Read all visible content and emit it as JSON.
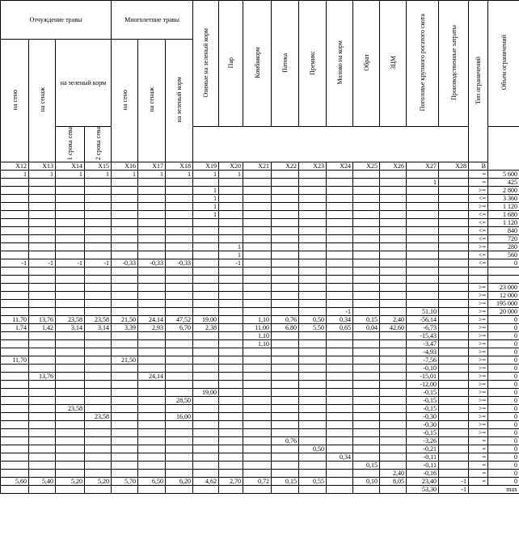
{
  "headers": {
    "g1": "Отчуждение травы",
    "g2": "Многолетние травы",
    "green_fodder_sub": "на зеленый корм",
    "cols": [
      {
        "code": "X12",
        "label": "на сено"
      },
      {
        "code": "X13",
        "label": "на сенаж"
      },
      {
        "code": "X14",
        "label": "1 срока сева"
      },
      {
        "code": "X15",
        "label": "2 срока сева"
      },
      {
        "code": "X16",
        "label": "на сено"
      },
      {
        "code": "X17",
        "label": "на сенаж"
      },
      {
        "code": "X18",
        "label": "на зеленый корм"
      },
      {
        "code": "X19",
        "label": "Озимые на зеленый корм"
      },
      {
        "code": "X20",
        "label": "Пар"
      },
      {
        "code": "X21",
        "label": "Комбикорм"
      },
      {
        "code": "X22",
        "label": "Патока"
      },
      {
        "code": "X23",
        "label": "Премикс"
      },
      {
        "code": "X24",
        "label": "Молоко на корм"
      },
      {
        "code": "X25",
        "label": "Обрат"
      },
      {
        "code": "X26",
        "label": "ЗЦМ"
      },
      {
        "code": "X27",
        "label": "Поголовье крупного рогатого скота"
      },
      {
        "code": "X28",
        "label": "Производственные затраты"
      }
    ],
    "type_label": "Тип ограничений",
    "volume_label": "Объем ограничений",
    "volume_code": "В"
  },
  "rows": [
    {
      "c": [
        "1",
        "1",
        "1",
        "1",
        "1",
        "1",
        "1",
        "1",
        "1",
        "",
        "",
        "",
        "",
        "",
        "",
        "",
        ""
      ],
      "op": "=",
      "v": "5 600"
    },
    {
      "c": [
        "",
        "",
        "",
        "",
        "",
        "",
        "",
        "",
        "",
        "",
        "",
        "",
        "",
        "",
        "",
        "1",
        ""
      ],
      "op": "=",
      "v": "425"
    },
    {
      "c": [
        "",
        "",
        "",
        "",
        "",
        "",
        "",
        "1",
        "",
        "",
        "",
        "",
        "",
        "",
        "",
        "",
        ""
      ],
      "op": ">=",
      "v": "2 800"
    },
    {
      "c": [
        "",
        "",
        "",
        "",
        "",
        "",
        "",
        "1",
        "",
        "",
        "",
        "",
        "",
        "",
        "",
        "",
        ""
      ],
      "op": "<=",
      "v": "3 360"
    },
    {
      "c": [
        "",
        "",
        "",
        "",
        "",
        "",
        "",
        "1",
        "",
        "",
        "",
        "",
        "",
        "",
        "",
        "",
        ""
      ],
      "op": ">=",
      "v": "1 120"
    },
    {
      "c": [
        "",
        "",
        "",
        "",
        "",
        "",
        "",
        "1",
        "",
        "",
        "",
        "",
        "",
        "",
        "",
        "",
        ""
      ],
      "op": "<=",
      "v": "1 680"
    },
    {
      "c": [
        "",
        "",
        "",
        "",
        "",
        "",
        "",
        "",
        "",
        "",
        "",
        "",
        "",
        "",
        "",
        "",
        ""
      ],
      "op": "<=",
      "v": "1 120"
    },
    {
      "c": [
        "",
        "",
        "",
        "",
        "",
        "",
        "",
        "",
        "",
        "",
        "",
        "",
        "",
        "",
        "",
        "",
        ""
      ],
      "op": "<=",
      "v": "840"
    },
    {
      "c": [
        "",
        "",
        "",
        "",
        "",
        "",
        "",
        "",
        "",
        "",
        "",
        "",
        "",
        "",
        "",
        "",
        ""
      ],
      "op": "<=",
      "v": "720"
    },
    {
      "c": [
        "",
        "",
        "",
        "",
        "",
        "",
        "",
        "",
        "1",
        "",
        "",
        "",
        "",
        "",
        "",
        "",
        ""
      ],
      "op": ">=",
      "v": "280"
    },
    {
      "c": [
        "",
        "",
        "",
        "",
        "",
        "",
        "",
        "",
        "1",
        "",
        "",
        "",
        "",
        "",
        "",
        "",
        ""
      ],
      "op": "<=",
      "v": "560"
    },
    {
      "c": [
        "-1",
        "-1",
        "-1",
        "-1",
        "-0,33",
        "-0,33",
        "-0,33",
        "",
        "-1",
        "",
        "",
        "",
        "",
        "",
        "",
        "",
        ""
      ],
      "op": "<=",
      "v": "0"
    },
    {
      "c": [
        "",
        "",
        "",
        "",
        "",
        "",
        "",
        "",
        "",
        "",
        "",
        "",
        "",
        "",
        "",
        "",
        ""
      ],
      "op": "",
      "v": ""
    },
    {
      "c": [
        "",
        "",
        "",
        "",
        "",
        "",
        "",
        "",
        "",
        "",
        "",
        "",
        "",
        "",
        "",
        "",
        ""
      ],
      "op": "",
      "v": ""
    },
    {
      "c": [
        "",
        "",
        "",
        "",
        "",
        "",
        "",
        "",
        "",
        "",
        "",
        "",
        "",
        "",
        "",
        "",
        ""
      ],
      "op": ">=",
      "v": "23 000"
    },
    {
      "c": [
        "",
        "",
        "",
        "",
        "",
        "",
        "",
        "",
        "",
        "",
        "",
        "",
        "",
        "",
        "",
        "",
        ""
      ],
      "op": ">=",
      "v": "12 000"
    },
    {
      "c": [
        "",
        "",
        "",
        "",
        "",
        "",
        "",
        "",
        "",
        "",
        "",
        "",
        "",
        "",
        "",
        "",
        ""
      ],
      "op": ">=",
      "v": "195 000"
    },
    {
      "c": [
        "",
        "",
        "",
        "",
        "",
        "",
        "",
        "",
        "",
        "",
        "",
        "",
        "-1",
        "",
        "",
        "51,10",
        ""
      ],
      "op": ">=",
      "v": "20 000"
    },
    {
      "c": [
        "11,70",
        "13,76",
        "23,58",
        "23,58",
        "21,50",
        "24,14",
        "47,52",
        "19,00",
        "",
        "1,10",
        "0,76",
        "0,50",
        "0,34",
        "0,15",
        "2,40",
        "-56,14",
        ""
      ],
      "op": ">=",
      "v": "0"
    },
    {
      "c": [
        "1,74",
        "1,42",
        "3,14",
        "3,14",
        "3,39",
        "2,93",
        "6,70",
        "2,38",
        "",
        "11,00",
        "6,80",
        "5,50",
        "0,65",
        "0,04",
        "42,60",
        "-6,73",
        ""
      ],
      "op": ">=",
      "v": "0"
    },
    {
      "c": [
        "",
        "",
        "",
        "",
        "",
        "",
        "",
        "",
        "",
        "1,10",
        "",
        "",
        "",
        "",
        "",
        "-15,43",
        ""
      ],
      "op": ">=",
      "v": "0"
    },
    {
      "c": [
        "",
        "",
        "",
        "",
        "",
        "",
        "",
        "",
        "",
        "1,10",
        "",
        "",
        "",
        "",
        "",
        "-3,47",
        ""
      ],
      "op": ">=",
      "v": "0"
    },
    {
      "c": [
        "",
        "",
        "",
        "",
        "",
        "",
        "",
        "",
        "",
        "",
        "",
        "",
        "",
        "",
        "",
        "-4,93",
        ""
      ],
      "op": ">=",
      "v": "0"
    },
    {
      "c": [
        "11,70",
        "",
        "",
        "",
        "21,50",
        "",
        "",
        "",
        "",
        "",
        "",
        "",
        "",
        "",
        "",
        "-7,56",
        ""
      ],
      "op": ">=",
      "v": "0"
    },
    {
      "c": [
        "",
        "",
        "",
        "",
        "",
        "",
        "",
        "",
        "",
        "",
        "",
        "",
        "",
        "",
        "",
        "-0,10",
        ""
      ],
      "op": ">=",
      "v": "0"
    },
    {
      "c": [
        "",
        "13,76",
        "",
        "",
        "",
        "24,14",
        "",
        "",
        "",
        "",
        "",
        "",
        "",
        "",
        "",
        "-15,01",
        ""
      ],
      "op": ">=",
      "v": "0"
    },
    {
      "c": [
        "",
        "",
        "",
        "",
        "",
        "",
        "",
        "",
        "",
        "",
        "",
        "",
        "",
        "",
        "",
        "-12,00",
        ""
      ],
      "op": ">=",
      "v": "0"
    },
    {
      "c": [
        "",
        "",
        "",
        "",
        "",
        "",
        "",
        "19,00",
        "",
        "",
        "",
        "",
        "",
        "",
        "",
        "-0,15",
        ""
      ],
      "op": ">=",
      "v": "0"
    },
    {
      "c": [
        "",
        "",
        "",
        "",
        "",
        "",
        "28,50",
        "",
        "",
        "",
        "",
        "",
        "",
        "",
        "",
        "-0,15",
        ""
      ],
      "op": ">=",
      "v": "0"
    },
    {
      "c": [
        "",
        "",
        "23,58",
        "",
        "",
        "",
        "",
        "",
        "",
        "",
        "",
        "",
        "",
        "",
        "",
        "-0,15",
        ""
      ],
      "op": ">=",
      "v": "0"
    },
    {
      "c": [
        "",
        "",
        "",
        "23,58",
        "",
        "",
        "16,00",
        "",
        "",
        "",
        "",
        "",
        "",
        "",
        "",
        "-0,30",
        ""
      ],
      "op": ">=",
      "v": "0"
    },
    {
      "c": [
        "",
        "",
        "",
        "",
        "",
        "",
        "",
        "",
        "",
        "",
        "",
        "",
        "",
        "",
        "",
        "-0,30",
        ""
      ],
      "op": ">=",
      "v": "0"
    },
    {
      "c": [
        "",
        "",
        "",
        "",
        "",
        "",
        "",
        "",
        "",
        "",
        "",
        "",
        "",
        "",
        "",
        "-0,15",
        ""
      ],
      "op": ">=",
      "v": "0"
    },
    {
      "c": [
        "",
        "",
        "",
        "",
        "",
        "",
        "",
        "",
        "",
        "",
        "0,76",
        "",
        "",
        "",
        "",
        "-3,26",
        ""
      ],
      "op": "=",
      "v": "0"
    },
    {
      "c": [
        "",
        "",
        "",
        "",
        "",
        "",
        "",
        "",
        "",
        "",
        "",
        "0,50",
        "",
        "",
        "",
        "-0,21",
        ""
      ],
      "op": "=",
      "v": "0"
    },
    {
      "c": [
        "",
        "",
        "",
        "",
        "",
        "",
        "",
        "",
        "",
        "",
        "",
        "",
        "0,34",
        "",
        "",
        "-0,11",
        ""
      ],
      "op": "=",
      "v": "0"
    },
    {
      "c": [
        "",
        "",
        "",
        "",
        "",
        "",
        "",
        "",
        "",
        "",
        "",
        "",
        "",
        "0,15",
        "",
        "-0,11",
        ""
      ],
      "op": "=",
      "v": "0"
    },
    {
      "c": [
        "",
        "",
        "",
        "",
        "",
        "",
        "",
        "",
        "",
        "",
        "",
        "",
        "",
        "",
        "2,40",
        "-0,16",
        ""
      ],
      "op": "=",
      "v": "0"
    },
    {
      "c": [
        "5,60",
        "5,40",
        "5,20",
        "5,20",
        "5,70",
        "6,50",
        "6,20",
        "4,62",
        "2,70",
        "0,72",
        "0,15",
        "0,55",
        "",
        "0,10",
        "8,05",
        "23,40",
        "-1"
      ],
      "op": "=",
      "v": "0"
    }
  ],
  "objective": {
    "x27": "53,30",
    "x28": "-1",
    "label": "max"
  }
}
